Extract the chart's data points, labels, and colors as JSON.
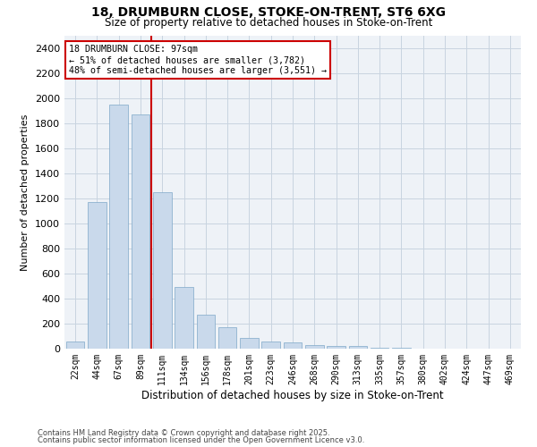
{
  "title_line1": "18, DRUMBURN CLOSE, STOKE-ON-TRENT, ST6 6XG",
  "title_line2": "Size of property relative to detached houses in Stoke-on-Trent",
  "xlabel": "Distribution of detached houses by size in Stoke-on-Trent",
  "ylabel": "Number of detached properties",
  "categories": [
    "22sqm",
    "44sqm",
    "67sqm",
    "89sqm",
    "111sqm",
    "134sqm",
    "156sqm",
    "178sqm",
    "201sqm",
    "223sqm",
    "246sqm",
    "268sqm",
    "290sqm",
    "313sqm",
    "335sqm",
    "357sqm",
    "380sqm",
    "402sqm",
    "424sqm",
    "447sqm",
    "469sqm"
  ],
  "values": [
    55,
    1170,
    1950,
    1870,
    1250,
    490,
    270,
    175,
    85,
    60,
    50,
    30,
    25,
    20,
    8,
    5,
    3,
    2,
    1,
    1,
    1
  ],
  "bar_color": "#c9d9eb",
  "bar_edge_color": "#7fa8c9",
  "red_line_index": 3,
  "annotation_text": "18 DRUMBURN CLOSE: 97sqm\n← 51% of detached houses are smaller (3,782)\n48% of semi-detached houses are larger (3,551) →",
  "annotation_box_color": "#ffffff",
  "annotation_box_edge_color": "#cc0000",
  "red_line_color": "#cc0000",
  "grid_color": "#c8d4e0",
  "background_color": "#eef2f7",
  "ylim": [
    0,
    2500
  ],
  "yticks": [
    0,
    200,
    400,
    600,
    800,
    1000,
    1200,
    1400,
    1600,
    1800,
    2000,
    2200,
    2400
  ],
  "footer_line1": "Contains HM Land Registry data © Crown copyright and database right 2025.",
  "footer_line2": "Contains public sector information licensed under the Open Government Licence v3.0."
}
